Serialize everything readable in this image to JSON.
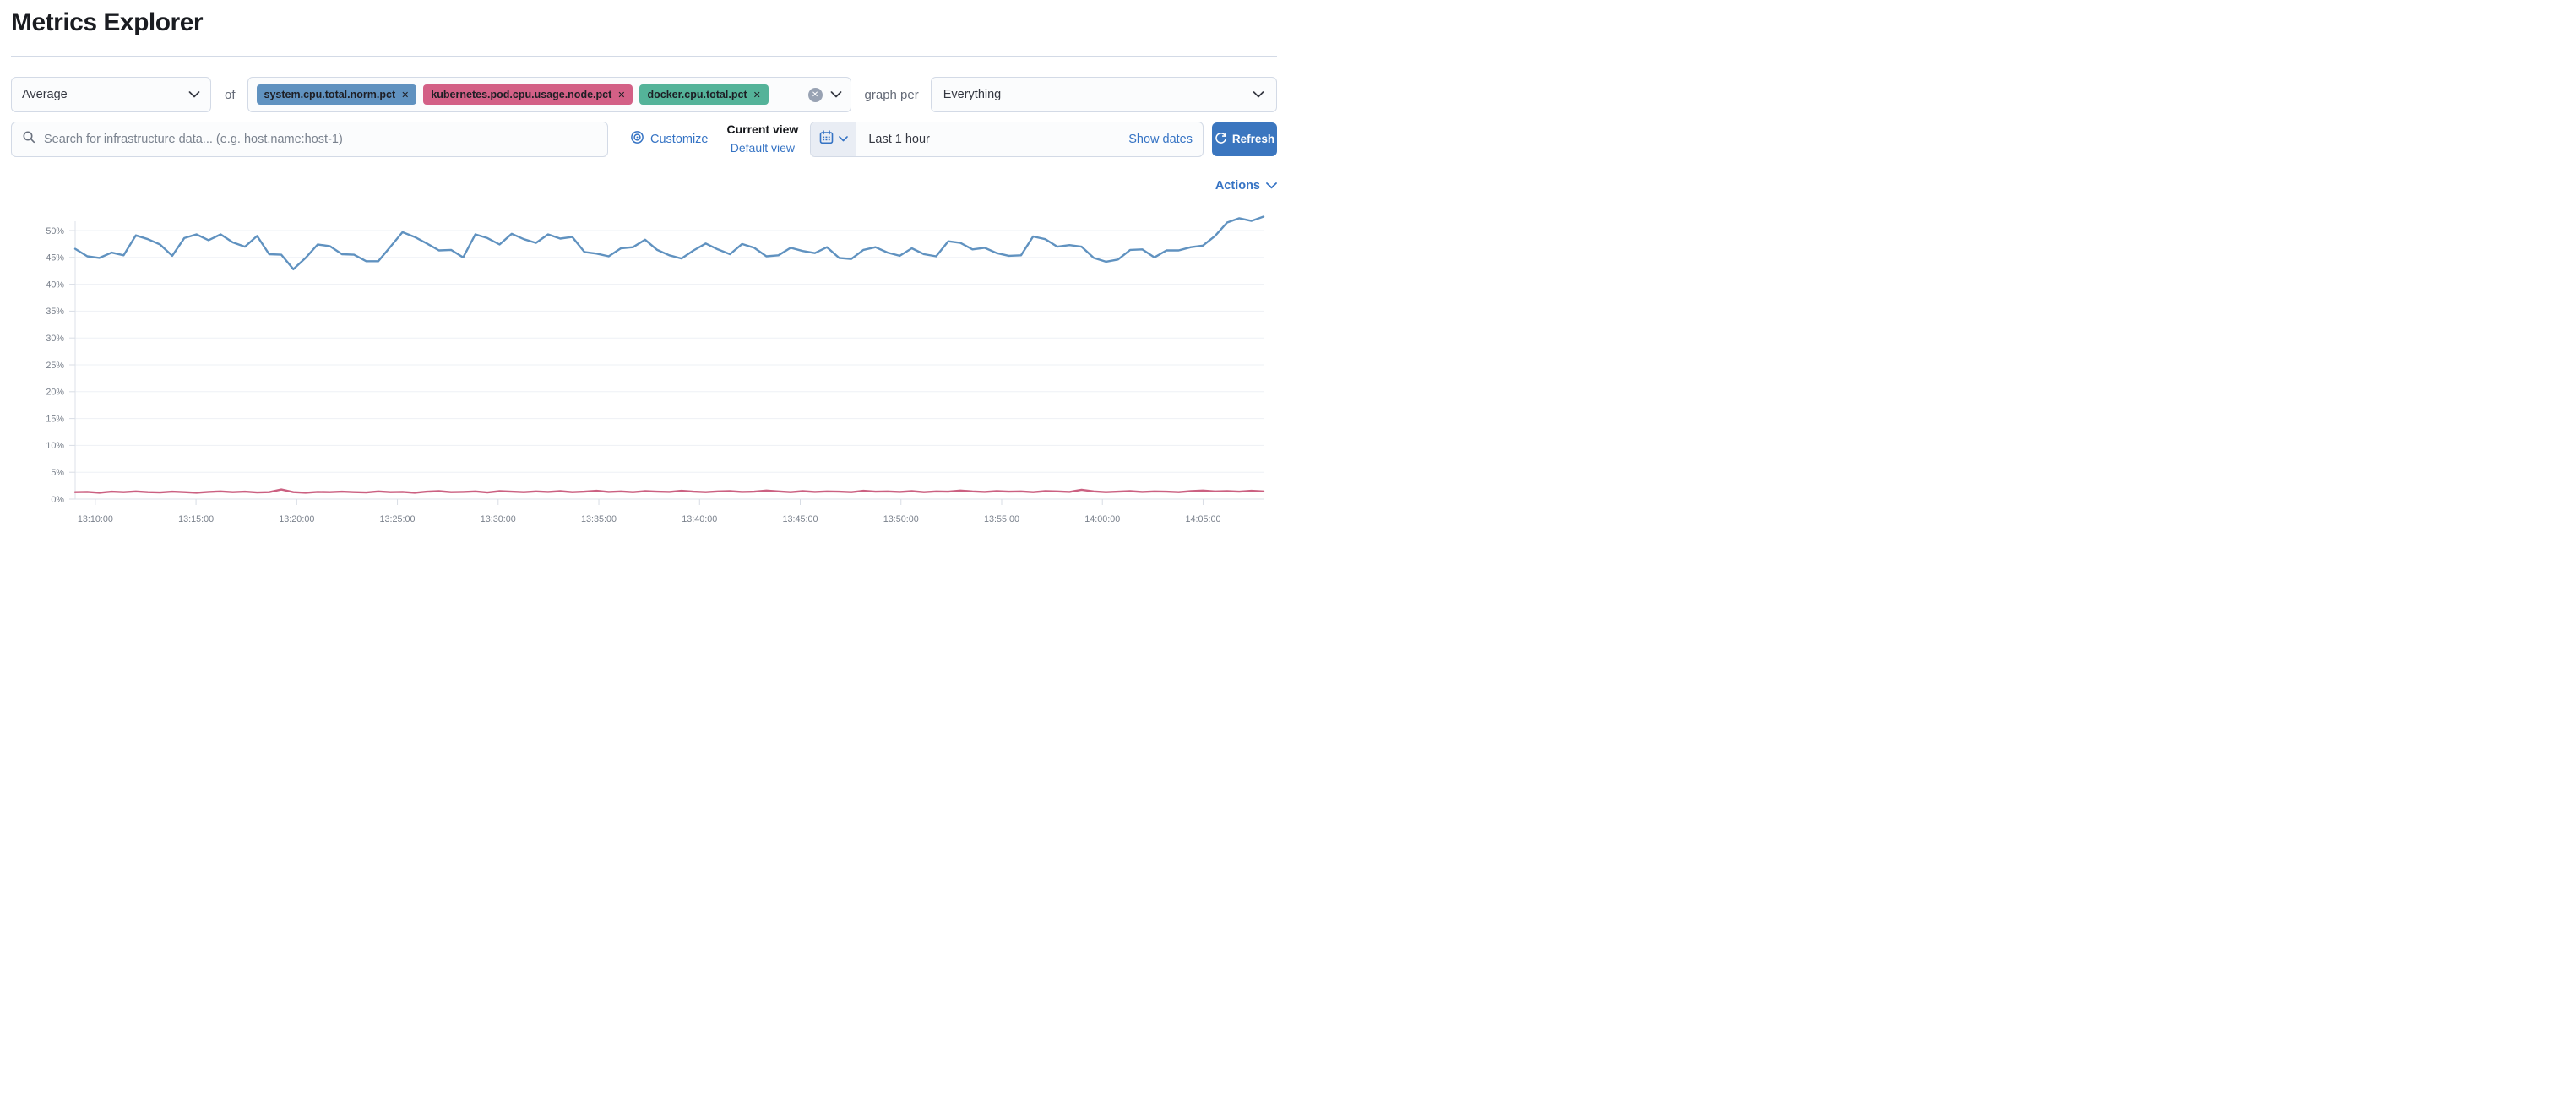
{
  "page": {
    "title": "Metrics Explorer"
  },
  "toolbar": {
    "aggregation": {
      "value": "Average"
    },
    "of_label": "of",
    "metrics": [
      {
        "label": "system.cpu.total.norm.pct",
        "color": "#6092C0"
      },
      {
        "label": "kubernetes.pod.cpu.usage.node.pct",
        "color": "#D36086"
      },
      {
        "label": "docker.cpu.total.pct",
        "color": "#54B399"
      }
    ],
    "remove_glyph": "✕",
    "clear_glyph": "✕",
    "graph_per_label": "graph per",
    "group_by": {
      "value": "Everything"
    }
  },
  "search": {
    "placeholder": "Search for infrastructure data... (e.g. host.name:host-1)"
  },
  "view_controls": {
    "customize_label": "Customize",
    "current_view_label": "Current view",
    "default_view_label": "Default view"
  },
  "time_controls": {
    "range_label": "Last 1 hour",
    "show_dates_label": "Show dates",
    "refresh_label": "Refresh"
  },
  "actions_label": "Actions",
  "colors": {
    "accent": "#3573c4",
    "button": "#3b76bf",
    "border": "#d3dae6"
  },
  "chart_data": {
    "type": "line",
    "title": "",
    "xlabel": "",
    "ylabel": "",
    "x_domain": [
      "13:09:00",
      "14:08:00"
    ],
    "x_ticks": [
      "13:10:00",
      "13:15:00",
      "13:20:00",
      "13:25:00",
      "13:30:00",
      "13:35:00",
      "13:40:00",
      "13:45:00",
      "13:50:00",
      "13:55:00",
      "14:00:00",
      "14:05:00"
    ],
    "y_ticks": [
      0,
      5,
      10,
      15,
      20,
      25,
      30,
      35,
      40,
      45,
      50
    ],
    "y_tick_suffix": "%",
    "ylim": [
      0,
      55
    ],
    "grid": "horizontal",
    "legend": "none",
    "series": [
      {
        "name": "system.cpu.total.norm.pct",
        "color": "#6092C0",
        "values": [
          46.6,
          45.2,
          44.9,
          45.9,
          45.4,
          49.1,
          48.4,
          47.4,
          45.3,
          48.6,
          49.3,
          48.2,
          49.3,
          47.8,
          47.0,
          49.0,
          45.6,
          45.5,
          42.8,
          44.9,
          47.4,
          47.1,
          45.6,
          45.5,
          44.3,
          44.3,
          47.0,
          49.7,
          48.8,
          47.6,
          46.3,
          46.4,
          45.0,
          49.3,
          48.6,
          47.4,
          49.4,
          48.4,
          47.7,
          49.3,
          48.5,
          48.8,
          46.0,
          45.7,
          45.2,
          46.7,
          46.9,
          48.3,
          46.4,
          45.4,
          44.8,
          46.3,
          47.6,
          46.5,
          45.6,
          47.5,
          46.8,
          45.2,
          45.4,
          46.8,
          46.2,
          45.8,
          46.9,
          44.9,
          44.7,
          46.4,
          46.9,
          45.9,
          45.3,
          46.7,
          45.6,
          45.2,
          48.0,
          47.7,
          46.5,
          46.8,
          45.8,
          45.3,
          45.4,
          48.9,
          48.4,
          47.0,
          47.3,
          47.0,
          44.9,
          44.2,
          44.6,
          46.4,
          46.5,
          45.0,
          46.3,
          46.3,
          46.9,
          47.2,
          49.0,
          51.5,
          52.3,
          51.8,
          52.6
        ]
      },
      {
        "name": "kubernetes.pod.cpu.usage.node.pct",
        "color": "#CB6081",
        "values": [
          1.3,
          1.35,
          1.2,
          1.4,
          1.3,
          1.45,
          1.3,
          1.25,
          1.4,
          1.3,
          1.2,
          1.35,
          1.45,
          1.3,
          1.4,
          1.25,
          1.3,
          1.8,
          1.3,
          1.2,
          1.35,
          1.3,
          1.4,
          1.3,
          1.25,
          1.45,
          1.3,
          1.35,
          1.2,
          1.4,
          1.5,
          1.3,
          1.35,
          1.45,
          1.25,
          1.5,
          1.4,
          1.3,
          1.45,
          1.35,
          1.5,
          1.3,
          1.4,
          1.55,
          1.35,
          1.45,
          1.3,
          1.5,
          1.4,
          1.35,
          1.55,
          1.4,
          1.3,
          1.45,
          1.5,
          1.35,
          1.4,
          1.6,
          1.45,
          1.3,
          1.5,
          1.35,
          1.45,
          1.4,
          1.3,
          1.55,
          1.4,
          1.45,
          1.35,
          1.5,
          1.3,
          1.45,
          1.4,
          1.6,
          1.45,
          1.35,
          1.5,
          1.4,
          1.45,
          1.3,
          1.5,
          1.45,
          1.35,
          1.75,
          1.45,
          1.3,
          1.4,
          1.5,
          1.35,
          1.45,
          1.4,
          1.3,
          1.5,
          1.6,
          1.45,
          1.5,
          1.4,
          1.55,
          1.45
        ]
      }
    ]
  }
}
